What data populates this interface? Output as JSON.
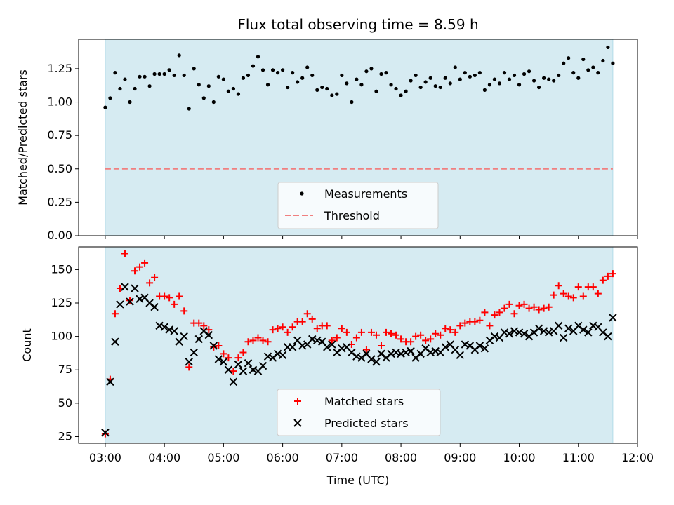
{
  "title": "Flux total observing time = 8.59 h",
  "colors": {
    "span": "#add8e6",
    "span_alpha": 0.5,
    "measurement": "#000000",
    "threshold": "#f08080",
    "matched": "#ff0000",
    "predicted": "#000000"
  },
  "chart_data": [
    {
      "type": "scatter",
      "panel": "top",
      "ylabel": "Matched/Predicted stars",
      "xlabel": "",
      "ylim": [
        0,
        1.47
      ],
      "xlim": [
        "02:33",
        "12:00"
      ],
      "shaded_span": [
        "03:00",
        "11:35"
      ],
      "yticks": [
        "0.00",
        "0.25",
        "0.50",
        "0.75",
        "1.00",
        "1.25"
      ],
      "threshold": 0.5,
      "legend": {
        "placement": "bottom-center",
        "entries": [
          "Measurements",
          "Threshold"
        ]
      },
      "series": [
        {
          "name": "Measurements",
          "x": [
            "03:00",
            "03:05",
            "03:10",
            "03:15",
            "03:20",
            "03:25",
            "03:30",
            "03:35",
            "03:40",
            "03:45",
            "03:50",
            "03:55",
            "04:00",
            "04:05",
            "04:10",
            "04:15",
            "04:20",
            "04:25",
            "04:30",
            "04:35",
            "04:40",
            "04:45",
            "04:50",
            "04:55",
            "05:00",
            "05:05",
            "05:10",
            "05:15",
            "05:20",
            "05:25",
            "05:30",
            "05:35",
            "05:40",
            "05:45",
            "05:50",
            "05:55",
            "06:00",
            "06:05",
            "06:10",
            "06:15",
            "06:20",
            "06:25",
            "06:30",
            "06:35",
            "06:40",
            "06:45",
            "06:50",
            "06:55",
            "07:00",
            "07:05",
            "07:10",
            "07:15",
            "07:20",
            "07:25",
            "07:30",
            "07:35",
            "07:40",
            "07:45",
            "07:50",
            "07:55",
            "08:00",
            "08:05",
            "08:10",
            "08:15",
            "08:20",
            "08:25",
            "08:30",
            "08:35",
            "08:40",
            "08:45",
            "08:50",
            "08:55",
            "09:00",
            "09:05",
            "09:10",
            "09:15",
            "09:20",
            "09:25",
            "09:30",
            "09:35",
            "09:40",
            "09:45",
            "09:50",
            "09:55",
            "10:00",
            "10:05",
            "10:10",
            "10:15",
            "10:20",
            "10:25",
            "10:30",
            "10:35",
            "10:40",
            "10:45",
            "10:50",
            "10:55",
            "11:00",
            "11:05",
            "11:10",
            "11:15",
            "11:20",
            "11:25",
            "11:30",
            "11:35"
          ],
          "values": [
            0.96,
            1.03,
            1.22,
            1.1,
            1.17,
            1.0,
            1.1,
            1.19,
            1.19,
            1.12,
            1.21,
            1.21,
            1.21,
            1.24,
            1.2,
            1.35,
            1.2,
            0.95,
            1.25,
            1.13,
            1.03,
            1.12,
            1.0,
            1.19,
            1.17,
            1.08,
            1.1,
            1.06,
            1.18,
            1.2,
            1.27,
            1.34,
            1.24,
            1.13,
            1.24,
            1.22,
            1.24,
            1.11,
            1.22,
            1.15,
            1.18,
            1.26,
            1.2,
            1.09,
            1.11,
            1.1,
            1.05,
            1.06,
            1.2,
            1.14,
            1.0,
            1.17,
            1.13,
            1.23,
            1.25,
            1.08,
            1.21,
            1.22,
            1.13,
            1.1,
            1.05,
            1.08,
            1.16,
            1.2,
            1.11,
            1.15,
            1.18,
            1.12,
            1.11,
            1.18,
            1.14,
            1.26,
            1.17,
            1.22,
            1.19,
            1.2,
            1.22,
            1.09,
            1.13,
            1.17,
            1.14,
            1.22,
            1.17,
            1.2,
            1.13,
            1.21,
            1.23,
            1.16,
            1.11,
            1.18,
            1.17,
            1.16,
            1.2,
            1.29,
            1.33,
            1.22,
            1.18,
            1.32,
            1.24,
            1.26,
            1.22,
            1.31,
            1.41,
            1.29
          ]
        }
      ]
    },
    {
      "type": "scatter",
      "panel": "bottom",
      "ylabel": "Count",
      "xlabel": "Time (UTC)",
      "ylim": [
        20,
        167
      ],
      "xlim": [
        "02:33",
        "12:00"
      ],
      "shaded_span": [
        "03:00",
        "11:35"
      ],
      "yticks": [
        "25",
        "50",
        "75",
        "100",
        "125",
        "150"
      ],
      "xticks": [
        "03:00",
        "04:00",
        "05:00",
        "06:00",
        "07:00",
        "08:00",
        "09:00",
        "10:00",
        "11:00",
        "12:00"
      ],
      "legend": {
        "placement": "bottom-center",
        "entries": [
          "Matched stars",
          "Predicted stars"
        ]
      },
      "series": [
        {
          "name": "Matched stars",
          "x": [
            "03:00",
            "03:05",
            "03:10",
            "03:15",
            "03:20",
            "03:25",
            "03:30",
            "03:35",
            "03:40",
            "03:45",
            "03:50",
            "03:55",
            "04:00",
            "04:05",
            "04:10",
            "04:15",
            "04:20",
            "04:25",
            "04:30",
            "04:35",
            "04:40",
            "04:45",
            "04:50",
            "04:55",
            "05:00",
            "05:05",
            "05:10",
            "05:15",
            "05:20",
            "05:25",
            "05:30",
            "05:35",
            "05:40",
            "05:45",
            "05:50",
            "05:55",
            "06:00",
            "06:05",
            "06:10",
            "06:15",
            "06:20",
            "06:25",
            "06:30",
            "06:35",
            "06:40",
            "06:45",
            "06:50",
            "06:55",
            "07:00",
            "07:05",
            "07:10",
            "07:15",
            "07:20",
            "07:25",
            "07:30",
            "07:35",
            "07:40",
            "07:45",
            "07:50",
            "07:55",
            "08:00",
            "08:05",
            "08:10",
            "08:15",
            "08:20",
            "08:25",
            "08:30",
            "08:35",
            "08:40",
            "08:45",
            "08:50",
            "08:55",
            "09:00",
            "09:05",
            "09:10",
            "09:15",
            "09:20",
            "09:25",
            "09:30",
            "09:35",
            "09:40",
            "09:45",
            "09:50",
            "09:55",
            "10:00",
            "10:05",
            "10:10",
            "10:15",
            "10:20",
            "10:25",
            "10:30",
            "10:35",
            "10:40",
            "10:45",
            "10:50",
            "10:55",
            "11:00",
            "11:05",
            "11:10",
            "11:15",
            "11:20",
            "11:25",
            "11:30",
            "11:35"
          ],
          "values": [
            27,
            68,
            117,
            136,
            162,
            127,
            149,
            152,
            155,
            140,
            144,
            130,
            130,
            129,
            124,
            130,
            119,
            77,
            110,
            110,
            108,
            105,
            92,
            93,
            87,
            84,
            74,
            84,
            88,
            96,
            97,
            99,
            97,
            96,
            105,
            106,
            107,
            103,
            107,
            111,
            111,
            117,
            113,
            106,
            108,
            108,
            97,
            99,
            106,
            103,
            94,
            99,
            103,
            90,
            103,
            101,
            93,
            103,
            102,
            101,
            98,
            96,
            96,
            100,
            101,
            97,
            98,
            102,
            101,
            106,
            105,
            103,
            108,
            110,
            111,
            111,
            112,
            118,
            108,
            116,
            118,
            121,
            124,
            117,
            123,
            124,
            121,
            122,
            120,
            121,
            122,
            131,
            138,
            132,
            130,
            129,
            137,
            130,
            137,
            137,
            132,
            142,
            145,
            147
          ]
        },
        {
          "name": "Predicted stars",
          "x": [
            "03:00",
            "03:05",
            "03:10",
            "03:15",
            "03:20",
            "03:25",
            "03:30",
            "03:35",
            "03:40",
            "03:45",
            "03:50",
            "03:55",
            "04:00",
            "04:05",
            "04:10",
            "04:15",
            "04:20",
            "04:25",
            "04:30",
            "04:35",
            "04:40",
            "04:45",
            "04:50",
            "04:55",
            "05:00",
            "05:05",
            "05:10",
            "05:15",
            "05:20",
            "05:25",
            "05:30",
            "05:35",
            "05:40",
            "05:45",
            "05:50",
            "05:55",
            "06:00",
            "06:05",
            "06:10",
            "06:15",
            "06:20",
            "06:25",
            "06:30",
            "06:35",
            "06:40",
            "06:45",
            "06:50",
            "06:55",
            "07:00",
            "07:05",
            "07:10",
            "07:15",
            "07:20",
            "07:25",
            "07:30",
            "07:35",
            "07:40",
            "07:45",
            "07:50",
            "07:55",
            "08:00",
            "08:05",
            "08:10",
            "08:15",
            "08:20",
            "08:25",
            "08:30",
            "08:35",
            "08:40",
            "08:45",
            "08:50",
            "08:55",
            "09:00",
            "09:05",
            "09:10",
            "09:15",
            "09:20",
            "09:25",
            "09:30",
            "09:35",
            "09:40",
            "09:45",
            "09:50",
            "09:55",
            "10:00",
            "10:05",
            "10:10",
            "10:15",
            "10:20",
            "10:25",
            "10:30",
            "10:35",
            "10:40",
            "10:45",
            "10:50",
            "10:55",
            "11:00",
            "11:05",
            "11:10",
            "11:15",
            "11:20",
            "11:25",
            "11:30",
            "11:35"
          ],
          "values": [
            28,
            66,
            96,
            124,
            137,
            126,
            136,
            128,
            129,
            125,
            122,
            108,
            107,
            105,
            104,
            96,
            100,
            81,
            88,
            98,
            104,
            101,
            93,
            83,
            81,
            75,
            66,
            79,
            74,
            80,
            75,
            74,
            78,
            85,
            84,
            87,
            86,
            92,
            92,
            97,
            93,
            94,
            98,
            97,
            96,
            92,
            94,
            88,
            91,
            92,
            88,
            85,
            84,
            87,
            83,
            81,
            87,
            84,
            87,
            88,
            87,
            88,
            89,
            84,
            87,
            91,
            88,
            89,
            88,
            92,
            94,
            90,
            86,
            94,
            93,
            90,
            93,
            91,
            97,
            100,
            99,
            103,
            102,
            104,
            103,
            102,
            100,
            103,
            106,
            104,
            103,
            104,
            108,
            99,
            106,
            104,
            108,
            105,
            103,
            108,
            107,
            103,
            100,
            114
          ]
        }
      ]
    }
  ]
}
